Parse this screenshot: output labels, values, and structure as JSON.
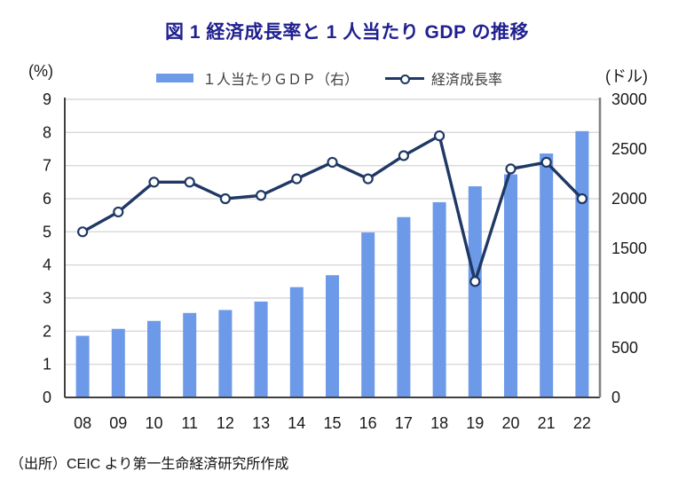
{
  "title": "図 1  経済成長率と 1 人当たり GDP の推移",
  "header": {
    "left_axis_unit": "(%)",
    "right_axis_unit": "(ドル)"
  },
  "legend": {
    "bar_label": "１人当たりＧＤＰ（右）",
    "line_label": "経済成長率"
  },
  "source": "（出所）CEIC より第一生命経済研究所作成",
  "colors": {
    "title": "#202090",
    "bar": "#6D9AE8",
    "line": "#1F3864",
    "marker_fill": "#FFFFFF",
    "grid": "#D9D9D9",
    "axis": "#404040",
    "right_border": "#7F7F7F",
    "tick_text": "#1A1A1A"
  },
  "chart_data": {
    "type": "bar",
    "subtype": "bar+line combo, dual axis",
    "categories": [
      "08",
      "09",
      "10",
      "11",
      "12",
      "13",
      "14",
      "15",
      "16",
      "17",
      "18",
      "19",
      "20",
      "21",
      "22"
    ],
    "series": [
      {
        "name": "１人当たりＧＤＰ（右）",
        "type": "bar",
        "axis": "right",
        "values": [
          620,
          690,
          770,
          850,
          880,
          965,
          1110,
          1230,
          1660,
          1815,
          1965,
          2125,
          2245,
          2455,
          2680
        ]
      },
      {
        "name": "経済成長率",
        "type": "line",
        "axis": "left",
        "values": [
          5.0,
          5.6,
          6.5,
          6.5,
          6.0,
          6.1,
          6.6,
          7.1,
          6.6,
          7.3,
          7.9,
          3.5,
          6.9,
          7.1,
          6.0
        ]
      }
    ],
    "left_axis": {
      "label": "(%)",
      "min": 0,
      "max": 9,
      "step": 1,
      "ticks": [
        0,
        1,
        2,
        3,
        4,
        5,
        6,
        7,
        8,
        9
      ]
    },
    "right_axis": {
      "label": "(ドル)",
      "min": 0,
      "max": 3000,
      "step": 500,
      "ticks": [
        0,
        500,
        1000,
        1500,
        2000,
        2500,
        3000
      ]
    },
    "grid": true,
    "legend_position": "top",
    "x_tick_labels": [
      "08",
      "09",
      "10",
      "11",
      "12",
      "13",
      "14",
      "15",
      "16",
      "17",
      "18",
      "19",
      "20",
      "21",
      "22"
    ]
  }
}
